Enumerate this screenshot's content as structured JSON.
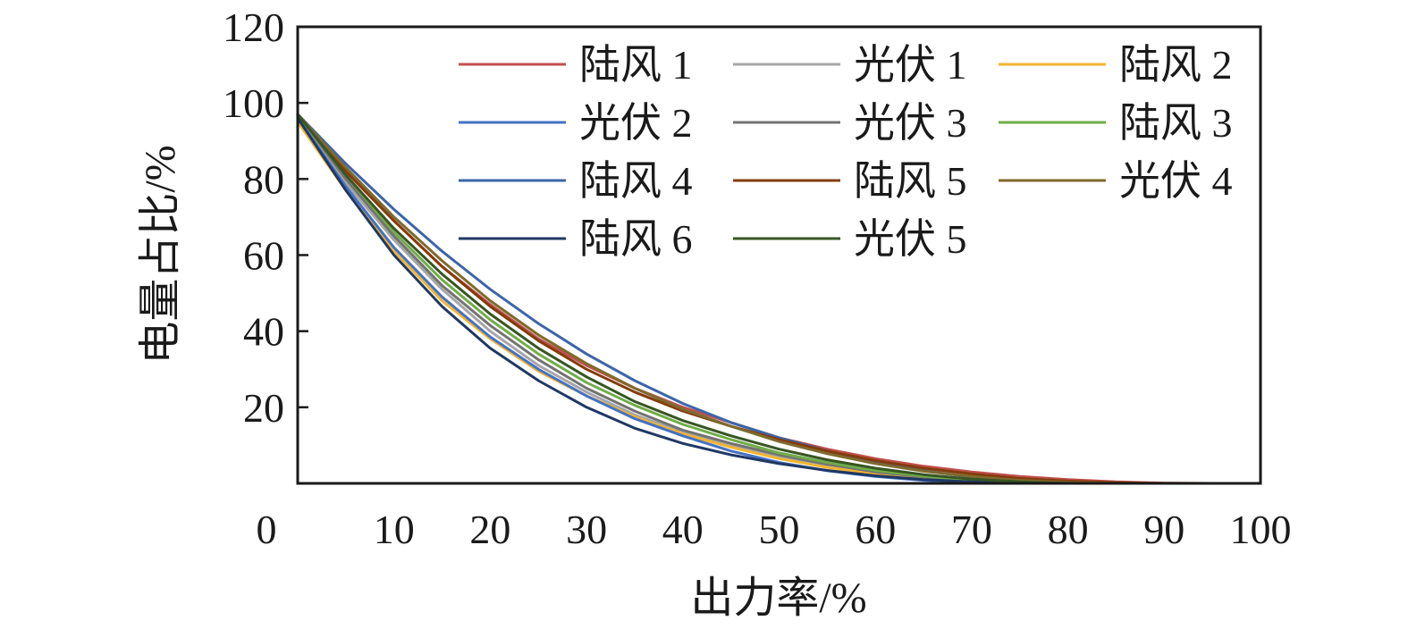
{
  "chart_data": {
    "type": "line",
    "xlabel": "出力率/%",
    "ylabel": "电量占比/%",
    "xlim": [
      0,
      100
    ],
    "ylim": [
      0,
      120
    ],
    "x_ticks": [
      "0",
      "10",
      "20",
      "30",
      "40",
      "50",
      "60",
      "70",
      "80",
      "90",
      "100"
    ],
    "y_ticks": [
      "20",
      "40",
      "60",
      "80",
      "100",
      "120"
    ],
    "grid": false,
    "legend_position": "top-right",
    "legend_columns": 3,
    "x": [
      0,
      5,
      10,
      15,
      20,
      25,
      30,
      35,
      40,
      45,
      50,
      55,
      60,
      65,
      70,
      75,
      80,
      85,
      90,
      95,
      100
    ],
    "series": [
      {
        "name": "陆风 1",
        "color": "#c0504d",
        "values": [
          97,
          82,
          69,
          57,
          47,
          38,
          31,
          25,
          20,
          16,
          12,
          9,
          6.5,
          4.5,
          3,
          1.8,
          1,
          0.4,
          0.1,
          0,
          0
        ]
      },
      {
        "name": "光伏 1",
        "color": "#a6a6a6",
        "values": [
          96,
          79,
          64,
          51,
          40,
          31,
          24,
          18,
          13.5,
          10,
          7,
          4.5,
          2.8,
          1.5,
          0.7,
          0.2,
          0,
          0,
          0,
          0,
          0
        ]
      },
      {
        "name": "陆风 2",
        "color": "#f2b530",
        "values": [
          95,
          77,
          61,
          48,
          38,
          29.5,
          23,
          17.5,
          13,
          9.5,
          6.5,
          4.2,
          2.5,
          1.3,
          0.6,
          0.2,
          0,
          0,
          0,
          0,
          0
        ]
      },
      {
        "name": "光伏 2",
        "color": "#4472c4",
        "values": [
          96,
          78,
          62,
          49,
          38.5,
          30,
          23,
          17,
          12.5,
          8.5,
          5.5,
          3.3,
          1.8,
          0.8,
          0.3,
          0,
          0,
          0,
          0,
          0,
          0
        ]
      },
      {
        "name": "光伏 3",
        "color": "#737373",
        "values": [
          97,
          80,
          65,
          52,
          41.5,
          32.5,
          25,
          19,
          14,
          10.5,
          7.5,
          5,
          3,
          1.7,
          0.8,
          0.2,
          0,
          0,
          0,
          0,
          0
        ]
      },
      {
        "name": "陆风 3",
        "color": "#70ad47",
        "values": [
          97,
          81,
          66,
          53.5,
          43,
          34,
          26.5,
          20.5,
          15.5,
          11.5,
          8,
          5.5,
          3.4,
          1.9,
          0.9,
          0.3,
          0,
          0,
          0,
          0,
          0
        ]
      },
      {
        "name": "陆风 4",
        "color": "#3d65a8",
        "values": [
          97,
          84,
          72,
          61,
          51,
          42,
          34,
          27,
          21,
          16,
          12,
          8.5,
          5.5,
          3.3,
          1.7,
          0.7,
          0.2,
          0,
          0,
          0,
          0
        ]
      },
      {
        "name": "陆风 5",
        "color": "#843c0c",
        "values": [
          97,
          82,
          69,
          57,
          46.5,
          37.5,
          30,
          24,
          19,
          15,
          11.5,
          8.5,
          6,
          4,
          2.5,
          1.3,
          0.6,
          0.2,
          0,
          0,
          0
        ]
      },
      {
        "name": "光伏 4",
        "color": "#7f6a2e",
        "values": [
          97,
          83,
          70,
          58.5,
          48,
          39,
          31.5,
          25,
          19.5,
          15,
          11,
          7.8,
          5.2,
          3.2,
          1.8,
          0.8,
          0.2,
          0,
          0,
          0,
          0
        ]
      },
      {
        "name": "陆风 6",
        "color": "#203864",
        "values": [
          96,
          77,
          60,
          46.5,
          35.5,
          27,
          20,
          14.5,
          10.5,
          7.5,
          5.2,
          3.4,
          2,
          1,
          0.4,
          0.1,
          0,
          0,
          0,
          0,
          0
        ]
      },
      {
        "name": "光伏 5",
        "color": "#375623",
        "values": [
          97,
          81,
          67,
          55,
          44.5,
          35.5,
          28,
          21.5,
          16.5,
          12.5,
          9,
          6.2,
          4,
          2.3,
          1.1,
          0.4,
          0,
          0,
          0,
          0,
          0
        ]
      }
    ]
  }
}
